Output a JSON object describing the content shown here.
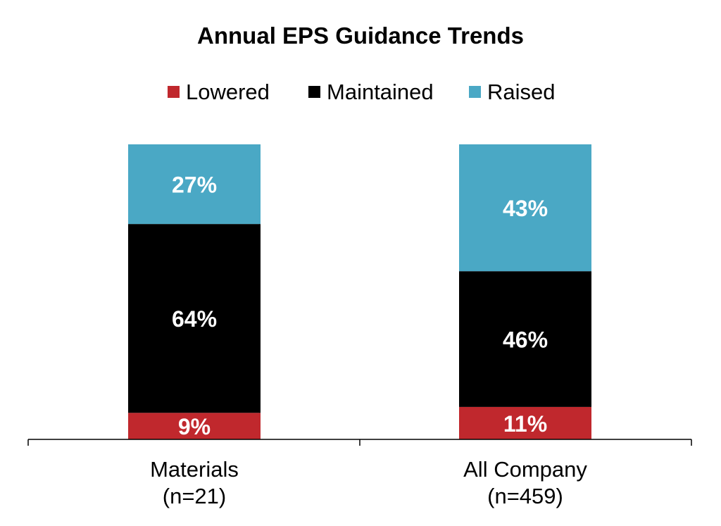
{
  "chart_data": {
    "type": "bar",
    "stacked": true,
    "title": "Annual EPS Guidance Trends",
    "categories": [
      [
        "Materials",
        "(n=21)"
      ],
      [
        "All Company",
        "(n=459)"
      ]
    ],
    "series": [
      {
        "name": "Lowered",
        "color": "#c0282d",
        "values": [
          9,
          11
        ],
        "labels": [
          "9%",
          "11%"
        ]
      },
      {
        "name": "Maintained",
        "color": "#000000",
        "values": [
          64,
          46
        ],
        "labels": [
          "64%",
          "46%"
        ]
      },
      {
        "name": "Raised",
        "color": "#4aa8c5",
        "values": [
          27,
          43
        ],
        "labels": [
          "27%",
          "43%"
        ]
      }
    ],
    "ylim": [
      0,
      100
    ],
    "legend_position": "top",
    "grid": false
  }
}
